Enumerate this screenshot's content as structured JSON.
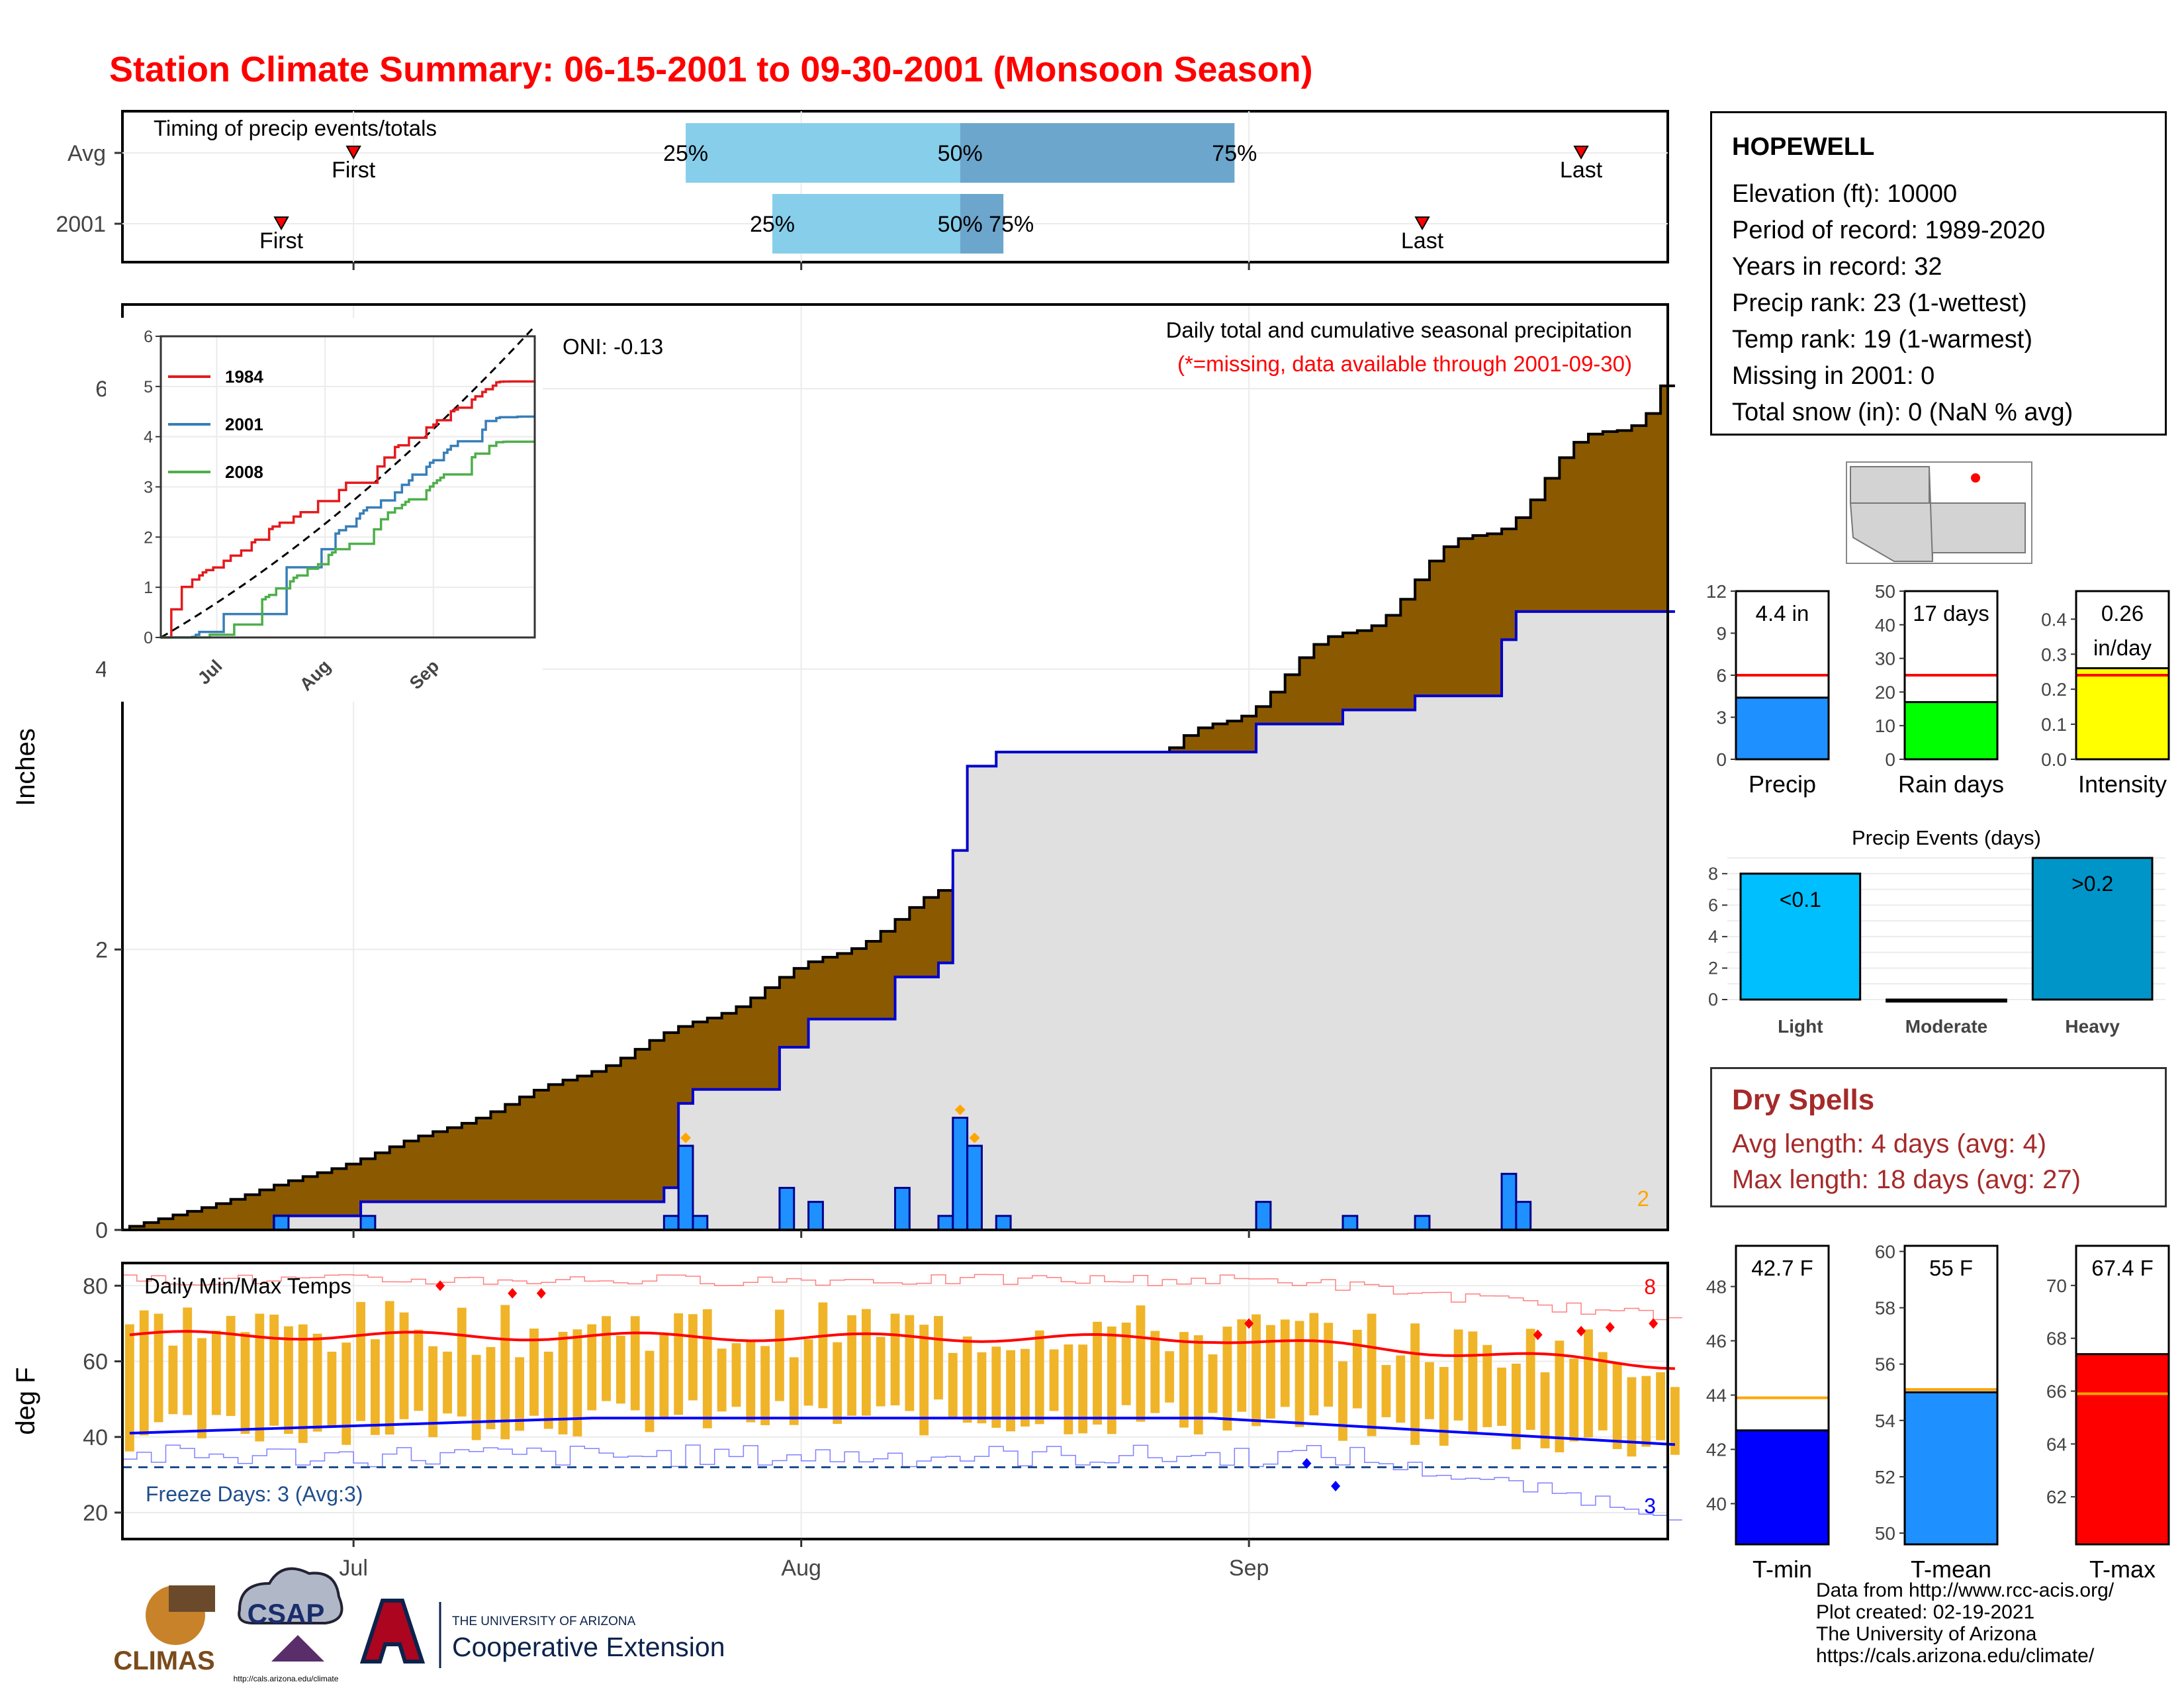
{
  "title": "Station Climate Summary: 06-15-2001 to 09-30-2001 (Monsoon Season)",
  "timing": {
    "label": "Timing of precip events/totals",
    "rows": [
      {
        "name": "Avg",
        "first": "2001-07-01",
        "p25": "2001-07-24",
        "p50": "2001-08-12",
        "p75": "2001-08-31",
        "last": "2001-09-24"
      },
      {
        "name": "2001",
        "first": "2001-06-26",
        "p25": "2001-07-30",
        "p50": "2001-08-12",
        "p75": "2001-08-15",
        "last": "2001-09-13"
      }
    ],
    "first_label": "First",
    "last_label": "Last",
    "q_labels": [
      "25%",
      "50%",
      "75%"
    ]
  },
  "station": {
    "name": "HOPEWELL",
    "lines": [
      "Elevation (ft): 10000",
      "Period of record: 1989-2020",
      "Years in record: 32",
      "Precip rank: 23 (1-wettest)",
      "Temp rank: 19 (1-warmest)",
      "Missing in 2001: 0",
      "Total snow (in): 0 (NaN % avg)"
    ]
  },
  "dry_spells": {
    "title": "Dry Spells",
    "avg": "Avg length: 4 days (avg: 4)",
    "max": "Max length: 18 days (avg: 27)"
  },
  "credits": [
    "Data from http://www.rcc-acis.org/",
    "Plot created: 02-19-2021",
    "The University of Arizona",
    "https://cals.arizona.edu/climate/"
  ],
  "logos": {
    "climas": "CLIMAS",
    "csap": "CSAP",
    "csap_url": "http://cals.arizona.edu/climate",
    "ua_top": "THE UNIVERSITY OF ARIZONA",
    "ua_bottom": "Cooperative Extension"
  },
  "colors": {
    "title": "#ff0000",
    "cum_avg": "#8b5a00",
    "cum_obs_fill": "#e0e0e0",
    "line_blue": "#0000cc",
    "bar_blue": "#1e90ff",
    "tmax": "#ff0000",
    "tmin": "#0000ff",
    "range_bar": "#f0b429",
    "freeze": "#1f4e8c"
  },
  "chart_data": [
    {
      "type": "area",
      "title": "Daily total and cumulative seasonal precipitation",
      "subtitle": "(*=missing, data available through 2001-09-30)",
      "annotation": "ONI: -0.13",
      "ylabel": "Inches",
      "x_ticks": [
        "Jul",
        "Aug",
        "Sep"
      ],
      "y_ticks": [
        0,
        2,
        4,
        6
      ],
      "ylim": [
        0,
        6.6
      ],
      "xlim": [
        "2001-06-15",
        "2001-09-30"
      ],
      "corner_label": "2",
      "avg_cumulative_final": 6.02,
      "observed_cumulative_final": 4.41,
      "daily_precip": [
        {
          "date": "2001-06-26",
          "value": 0.1
        },
        {
          "date": "2001-07-02",
          "value": 0.1
        },
        {
          "date": "2001-07-23",
          "value": 0.1
        },
        {
          "date": "2001-07-24",
          "value": 0.6
        },
        {
          "date": "2001-07-25",
          "value": 0.1
        },
        {
          "date": "2001-07-31",
          "value": 0.3
        },
        {
          "date": "2001-08-02",
          "value": 0.2
        },
        {
          "date": "2001-08-08",
          "value": 0.3
        },
        {
          "date": "2001-08-11",
          "value": 0.1
        },
        {
          "date": "2001-08-12",
          "value": 0.8
        },
        {
          "date": "2001-08-13",
          "value": 0.6
        },
        {
          "date": "2001-08-15",
          "value": 0.1
        },
        {
          "date": "2001-09-02",
          "value": 0.2
        },
        {
          "date": "2001-09-08",
          "value": 0.1
        },
        {
          "date": "2001-09-13",
          "value": 0.1
        },
        {
          "date": "2001-09-19",
          "value": 0.4
        },
        {
          "date": "2001-09-20",
          "value": 0.2
        }
      ]
    },
    {
      "type": "line",
      "title": "",
      "x_ticks": [
        "Jul",
        "Aug",
        "Sep"
      ],
      "y_ticks": [
        0,
        1,
        2,
        3,
        4,
        5,
        6
      ],
      "ylim": [
        0,
        6
      ],
      "series": [
        {
          "name": "1984",
          "final": 5.1
        },
        {
          "name": "2001",
          "final": 4.4
        },
        {
          "name": "2008",
          "final": 3.9
        }
      ]
    },
    {
      "type": "bar",
      "title": "",
      "panels": [
        {
          "xlabel": "Precip",
          "label": "4.4 in",
          "value": 4.4,
          "avg": 6.0,
          "ylim": [
            0,
            12
          ],
          "y_ticks": [
            0,
            3,
            6,
            9,
            12
          ],
          "color": "#1e90ff"
        },
        {
          "xlabel": "Rain days",
          "label": "17 days",
          "value": 17,
          "avg": 25,
          "ylim": [
            0,
            50
          ],
          "y_ticks": [
            0,
            10,
            20,
            30,
            40,
            50
          ],
          "color": "#00ff00"
        },
        {
          "xlabel": "Intensity",
          "label": "0.26",
          "label2": "in/day",
          "value": 0.26,
          "avg": 0.24,
          "ylim": [
            0,
            0.48
          ],
          "y_ticks": [
            "0.0",
            "0.1",
            "0.2",
            "0.3",
            "0.4"
          ],
          "color": "#ffff00"
        }
      ]
    },
    {
      "type": "bar",
      "title": "Precip Events (days)",
      "categories": [
        "Light",
        "Moderate",
        "Heavy"
      ],
      "labels": [
        "<0.1",
        "",
        ">0.2"
      ],
      "values": [
        8,
        0,
        9
      ],
      "ylim": [
        0,
        9
      ],
      "y_ticks": [
        0,
        2,
        4,
        6,
        8
      ],
      "colors": [
        "#00bfff",
        "#00bfff",
        "#0095c8"
      ]
    },
    {
      "type": "line",
      "title": "Daily Min/Max Temps",
      "ylabel": "deg F",
      "x_ticks": [
        "Jul",
        "Aug",
        "Sep"
      ],
      "y_ticks": [
        20,
        40,
        60,
        80
      ],
      "ylim": [
        13,
        86
      ],
      "freeze_label": "Freeze Days: 3 (Avg:3)",
      "freeze_line": 32,
      "corner_max": "8",
      "corner_min": "3",
      "tmax_avg_start": 67,
      "tmax_avg_mid": 66,
      "tmax_avg_end": 58,
      "tmin_avg_start": 41,
      "tmin_avg_mid": 45,
      "tmin_avg_end": 38
    },
    {
      "type": "bar",
      "title": "",
      "panels": [
        {
          "xlabel": "T-min",
          "label": "42.7 F",
          "value": 42.7,
          "avg": 43.9,
          "ylim": [
            38.5,
            49.5
          ],
          "y_ticks": [
            40,
            42,
            44,
            46,
            48
          ],
          "color": "#0000ff"
        },
        {
          "xlabel": "T-mean",
          "label": "55 F",
          "value": 55.0,
          "avg": 55.1,
          "ylim": [
            49.6,
            60.2
          ],
          "y_ticks": [
            50,
            52,
            54,
            56,
            58,
            60
          ],
          "color": "#1e90ff"
        },
        {
          "xlabel": "T-max",
          "label": "67.4 F",
          "value": 67.4,
          "avg": 65.9,
          "ylim": [
            60.2,
            71.5
          ],
          "y_ticks": [
            62,
            64,
            66,
            68,
            70
          ],
          "color": "#ff0000"
        }
      ]
    }
  ]
}
